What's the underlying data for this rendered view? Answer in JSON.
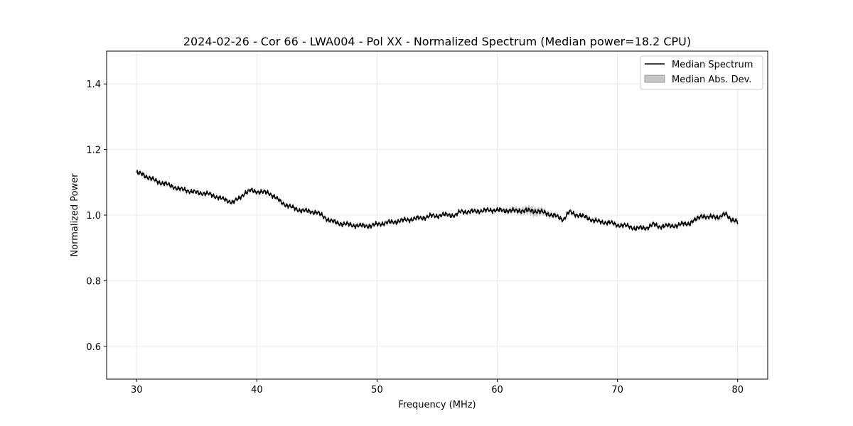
{
  "chart_data": {
    "type": "line",
    "title": "2024-02-26 - Cor 66 - LWA004 - Pol XX - Normalized Spectrum (Median power=18.2 CPU)",
    "xlabel": "Frequency (MHz)",
    "ylabel": "Normalized Power",
    "xlim": [
      27.5,
      82.5
    ],
    "ylim": [
      0.5,
      1.5
    ],
    "xticks": [
      30,
      40,
      50,
      60,
      70,
      80
    ],
    "yticks": [
      0.6,
      0.8,
      1.0,
      1.2,
      1.4
    ],
    "xtick_labels": [
      "30",
      "40",
      "50",
      "60",
      "70",
      "80"
    ],
    "ytick_labels": [
      "0.6",
      "0.8",
      "1.0",
      "1.2",
      "1.4"
    ],
    "grid": true,
    "legend_position": "top-right",
    "colors": {
      "line": "#000000",
      "band": "#808080"
    },
    "series": [
      {
        "name": "Median Spectrum",
        "x": [
          30,
          30.5,
          31,
          31.5,
          32,
          32.5,
          33,
          33.5,
          34,
          34.5,
          35,
          35.5,
          36,
          36.5,
          37,
          37.5,
          38,
          38.5,
          39,
          39.5,
          40,
          40.5,
          41,
          41.5,
          42,
          42.5,
          43,
          43.5,
          44,
          44.5,
          45,
          45.5,
          46,
          46.5,
          47,
          47.5,
          48,
          48.5,
          49,
          49.5,
          50,
          50.5,
          51,
          51.5,
          52,
          52.5,
          53,
          53.5,
          54,
          54.5,
          55,
          55.5,
          56,
          56.5,
          57,
          57.5,
          58,
          58.5,
          59,
          59.5,
          60,
          60.5,
          61,
          61.5,
          62,
          62.5,
          63,
          63.5,
          64,
          64.5,
          65,
          65.5,
          66,
          66.5,
          67,
          67.5,
          68,
          68.5,
          69,
          69.5,
          70,
          70.5,
          71,
          71.5,
          72,
          72.5,
          73,
          73.5,
          74,
          74.5,
          75,
          75.5,
          76,
          76.5,
          77,
          77.5,
          78,
          78.5,
          79,
          79.5,
          80
        ],
        "values": [
          1.128,
          1.125,
          1.114,
          1.106,
          1.099,
          1.094,
          1.088,
          1.079,
          1.078,
          1.072,
          1.069,
          1.067,
          1.064,
          1.058,
          1.051,
          1.045,
          1.039,
          1.05,
          1.068,
          1.075,
          1.072,
          1.07,
          1.068,
          1.055,
          1.04,
          1.03,
          1.022,
          1.016,
          1.013,
          1.011,
          1.008,
          0.997,
          0.985,
          0.978,
          0.974,
          0.972,
          0.969,
          0.968,
          0.967,
          0.968,
          0.972,
          0.975,
          0.978,
          0.98,
          0.983,
          0.986,
          0.988,
          0.991,
          0.993,
          0.998,
          0.998,
          1.001,
          1.001,
          0.999,
          1.012,
          1.01,
          1.011,
          1.013,
          1.014,
          1.015,
          1.016,
          1.013,
          1.015,
          1.013,
          1.014,
          1.014,
          1.013,
          1.011,
          1.007,
          1.001,
          0.995,
          0.987,
          1.01,
          1.002,
          0.998,
          0.992,
          0.984,
          0.98,
          0.978,
          0.976,
          0.97,
          0.968,
          0.966,
          0.959,
          0.961,
          0.962,
          0.972,
          0.965,
          0.967,
          0.968,
          0.968,
          0.974,
          0.975,
          0.985,
          1.0,
          0.991,
          0.998,
          0.992,
          1.005,
          0.986,
          0.978
        ]
      },
      {
        "name": "Median Abs. Dev.",
        "x": [
          30,
          35,
          40,
          45,
          50,
          55,
          60,
          61,
          62,
          63,
          64,
          65,
          70,
          75,
          80
        ],
        "values": [
          0.007,
          0.004,
          0.005,
          0.005,
          0.006,
          0.004,
          0.005,
          0.008,
          0.01,
          0.013,
          0.009,
          0.006,
          0.005,
          0.006,
          0.008
        ]
      }
    ]
  }
}
